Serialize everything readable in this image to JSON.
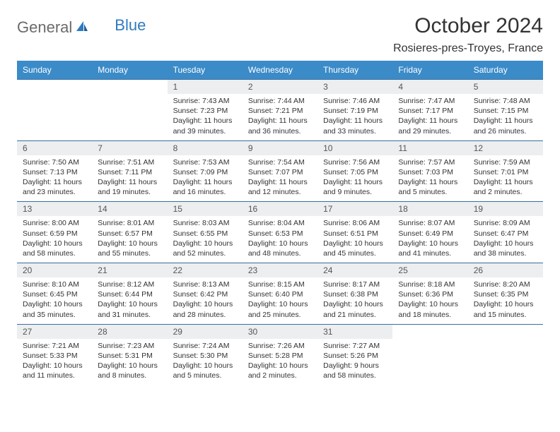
{
  "brand": {
    "part1": "General",
    "part2": "Blue"
  },
  "title": "October 2024",
  "location": "Rosieres-pres-Troyes, France",
  "colors": {
    "header_bg": "#3b8bc8",
    "header_text": "#ffffff",
    "daynum_bg": "#eceeef",
    "row_border": "#3b6fa0",
    "brand_gray": "#6b6b6b",
    "brand_blue": "#2f7bbf"
  },
  "weekdays": [
    "Sunday",
    "Monday",
    "Tuesday",
    "Wednesday",
    "Thursday",
    "Friday",
    "Saturday"
  ],
  "weeks": [
    [
      null,
      null,
      {
        "n": "1",
        "sunrise": "7:43 AM",
        "sunset": "7:23 PM",
        "daylight": "11 hours and 39 minutes."
      },
      {
        "n": "2",
        "sunrise": "7:44 AM",
        "sunset": "7:21 PM",
        "daylight": "11 hours and 36 minutes."
      },
      {
        "n": "3",
        "sunrise": "7:46 AM",
        "sunset": "7:19 PM",
        "daylight": "11 hours and 33 minutes."
      },
      {
        "n": "4",
        "sunrise": "7:47 AM",
        "sunset": "7:17 PM",
        "daylight": "11 hours and 29 minutes."
      },
      {
        "n": "5",
        "sunrise": "7:48 AM",
        "sunset": "7:15 PM",
        "daylight": "11 hours and 26 minutes."
      }
    ],
    [
      {
        "n": "6",
        "sunrise": "7:50 AM",
        "sunset": "7:13 PM",
        "daylight": "11 hours and 23 minutes."
      },
      {
        "n": "7",
        "sunrise": "7:51 AM",
        "sunset": "7:11 PM",
        "daylight": "11 hours and 19 minutes."
      },
      {
        "n": "8",
        "sunrise": "7:53 AM",
        "sunset": "7:09 PM",
        "daylight": "11 hours and 16 minutes."
      },
      {
        "n": "9",
        "sunrise": "7:54 AM",
        "sunset": "7:07 PM",
        "daylight": "11 hours and 12 minutes."
      },
      {
        "n": "10",
        "sunrise": "7:56 AM",
        "sunset": "7:05 PM",
        "daylight": "11 hours and 9 minutes."
      },
      {
        "n": "11",
        "sunrise": "7:57 AM",
        "sunset": "7:03 PM",
        "daylight": "11 hours and 5 minutes."
      },
      {
        "n": "12",
        "sunrise": "7:59 AM",
        "sunset": "7:01 PM",
        "daylight": "11 hours and 2 minutes."
      }
    ],
    [
      {
        "n": "13",
        "sunrise": "8:00 AM",
        "sunset": "6:59 PM",
        "daylight": "10 hours and 58 minutes."
      },
      {
        "n": "14",
        "sunrise": "8:01 AM",
        "sunset": "6:57 PM",
        "daylight": "10 hours and 55 minutes."
      },
      {
        "n": "15",
        "sunrise": "8:03 AM",
        "sunset": "6:55 PM",
        "daylight": "10 hours and 52 minutes."
      },
      {
        "n": "16",
        "sunrise": "8:04 AM",
        "sunset": "6:53 PM",
        "daylight": "10 hours and 48 minutes."
      },
      {
        "n": "17",
        "sunrise": "8:06 AM",
        "sunset": "6:51 PM",
        "daylight": "10 hours and 45 minutes."
      },
      {
        "n": "18",
        "sunrise": "8:07 AM",
        "sunset": "6:49 PM",
        "daylight": "10 hours and 41 minutes."
      },
      {
        "n": "19",
        "sunrise": "8:09 AM",
        "sunset": "6:47 PM",
        "daylight": "10 hours and 38 minutes."
      }
    ],
    [
      {
        "n": "20",
        "sunrise": "8:10 AM",
        "sunset": "6:45 PM",
        "daylight": "10 hours and 35 minutes."
      },
      {
        "n": "21",
        "sunrise": "8:12 AM",
        "sunset": "6:44 PM",
        "daylight": "10 hours and 31 minutes."
      },
      {
        "n": "22",
        "sunrise": "8:13 AM",
        "sunset": "6:42 PM",
        "daylight": "10 hours and 28 minutes."
      },
      {
        "n": "23",
        "sunrise": "8:15 AM",
        "sunset": "6:40 PM",
        "daylight": "10 hours and 25 minutes."
      },
      {
        "n": "24",
        "sunrise": "8:17 AM",
        "sunset": "6:38 PM",
        "daylight": "10 hours and 21 minutes."
      },
      {
        "n": "25",
        "sunrise": "8:18 AM",
        "sunset": "6:36 PM",
        "daylight": "10 hours and 18 minutes."
      },
      {
        "n": "26",
        "sunrise": "8:20 AM",
        "sunset": "6:35 PM",
        "daylight": "10 hours and 15 minutes."
      }
    ],
    [
      {
        "n": "27",
        "sunrise": "7:21 AM",
        "sunset": "5:33 PM",
        "daylight": "10 hours and 11 minutes."
      },
      {
        "n": "28",
        "sunrise": "7:23 AM",
        "sunset": "5:31 PM",
        "daylight": "10 hours and 8 minutes."
      },
      {
        "n": "29",
        "sunrise": "7:24 AM",
        "sunset": "5:30 PM",
        "daylight": "10 hours and 5 minutes."
      },
      {
        "n": "30",
        "sunrise": "7:26 AM",
        "sunset": "5:28 PM",
        "daylight": "10 hours and 2 minutes."
      },
      {
        "n": "31",
        "sunrise": "7:27 AM",
        "sunset": "5:26 PM",
        "daylight": "9 hours and 58 minutes."
      },
      null,
      null
    ]
  ],
  "labels": {
    "sunrise": "Sunrise:",
    "sunset": "Sunset:",
    "daylight": "Daylight:"
  }
}
